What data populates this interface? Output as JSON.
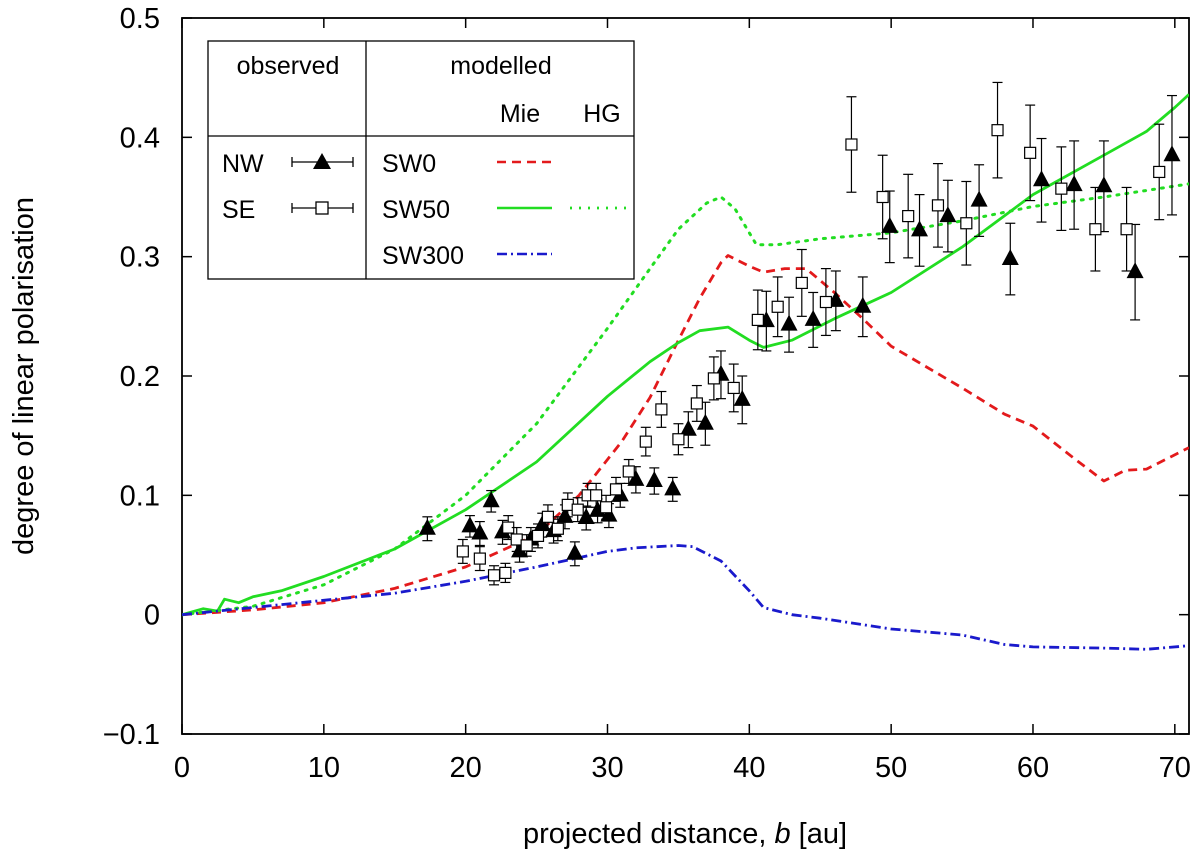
{
  "chart_data": {
    "type": "scatter",
    "title": "",
    "xlabel_pre": "projected distance, ",
    "xlabel_var": "b",
    "xlabel_post": " [au]",
    "ylabel": "degree of linear polarisation",
    "xlim": [
      0,
      71
    ],
    "ylim": [
      -0.1,
      0.5
    ],
    "x_ticks": [
      0,
      10,
      20,
      30,
      40,
      50,
      60,
      70
    ],
    "x_tick_labels": [
      "0",
      "10",
      "20",
      "30",
      "40",
      "50",
      "60",
      "70"
    ],
    "y_ticks": [
      -0.1,
      0,
      0.1,
      0.2,
      0.3,
      0.4,
      0.5
    ],
    "y_tick_labels": [
      "−0.1",
      "0",
      "0.1",
      "0.2",
      "0.3",
      "0.4",
      "0.5"
    ],
    "legend": {
      "placement": "top-left",
      "observed_header": "observed",
      "modelled_header": "modelled",
      "mie_header": "Mie",
      "hg_header": "HG",
      "observed_entries": [
        {
          "label": "NW",
          "marker": "filled-triangle"
        },
        {
          "label": "SE",
          "marker": "open-square"
        }
      ],
      "modelled_entries": [
        {
          "label": "SW0",
          "mie": "red dashed",
          "hg": ""
        },
        {
          "label": "SW50",
          "mie": "green solid",
          "hg": "green dotted"
        },
        {
          "label": "SW300",
          "mie": "blue dash-dot",
          "hg": ""
        }
      ]
    },
    "series": [
      {
        "name": "NW",
        "kind": "points",
        "marker": "triangle",
        "color": "#000000",
        "points": [
          [
            17.3,
            0.072,
            0.01
          ],
          [
            20.3,
            0.074,
            0.009
          ],
          [
            21.0,
            0.068,
            0.01
          ],
          [
            21.8,
            0.095,
            0.009
          ],
          [
            22.6,
            0.069,
            0.01
          ],
          [
            23.8,
            0.053,
            0.009
          ],
          [
            24.6,
            0.063,
            0.01
          ],
          [
            25.4,
            0.075,
            0.01
          ],
          [
            26.2,
            0.07,
            0.01
          ],
          [
            27.0,
            0.082,
            0.01
          ],
          [
            27.7,
            0.051,
            0.01
          ],
          [
            28.5,
            0.081,
            0.01
          ],
          [
            29.3,
            0.087,
            0.01
          ],
          [
            30.1,
            0.083,
            0.01
          ],
          [
            30.9,
            0.1,
            0.01
          ],
          [
            32.0,
            0.113,
            0.011
          ],
          [
            33.3,
            0.112,
            0.011
          ],
          [
            34.6,
            0.105,
            0.01
          ],
          [
            35.7,
            0.155,
            0.015
          ],
          [
            36.9,
            0.16,
            0.018
          ],
          [
            38.0,
            0.201,
            0.02
          ],
          [
            39.5,
            0.18,
            0.02
          ],
          [
            41.2,
            0.246,
            0.025
          ],
          [
            42.8,
            0.243,
            0.023
          ],
          [
            44.5,
            0.247,
            0.023
          ],
          [
            46.1,
            0.263,
            0.025
          ],
          [
            48.0,
            0.258,
            0.025
          ],
          [
            49.9,
            0.325,
            0.03
          ],
          [
            52.0,
            0.322,
            0.03
          ],
          [
            54.0,
            0.334,
            0.03
          ],
          [
            56.2,
            0.347,
            0.03
          ],
          [
            58.4,
            0.298,
            0.03
          ],
          [
            60.6,
            0.364,
            0.035
          ],
          [
            62.9,
            0.36,
            0.037
          ],
          [
            65.0,
            0.359,
            0.038
          ],
          [
            67.2,
            0.287,
            0.04
          ],
          [
            69.8,
            0.385,
            0.05
          ]
        ]
      },
      {
        "name": "SE",
        "kind": "points",
        "marker": "square",
        "color": "#000000",
        "points": [
          [
            19.8,
            0.053,
            0.01
          ],
          [
            21.0,
            0.047,
            0.01
          ],
          [
            22.0,
            0.033,
            0.008
          ],
          [
            22.8,
            0.035,
            0.008
          ],
          [
            23.0,
            0.073,
            0.01
          ],
          [
            23.6,
            0.063,
            0.01
          ],
          [
            24.3,
            0.058,
            0.009
          ],
          [
            25.1,
            0.066,
            0.01
          ],
          [
            25.8,
            0.082,
            0.01
          ],
          [
            26.5,
            0.072,
            0.01
          ],
          [
            27.2,
            0.092,
            0.01
          ],
          [
            27.9,
            0.088,
            0.01
          ],
          [
            28.6,
            0.1,
            0.01
          ],
          [
            29.2,
            0.1,
            0.01
          ],
          [
            29.9,
            0.09,
            0.01
          ],
          [
            30.6,
            0.105,
            0.01
          ],
          [
            31.5,
            0.12,
            0.01
          ],
          [
            32.7,
            0.145,
            0.012
          ],
          [
            33.8,
            0.172,
            0.015
          ],
          [
            35.0,
            0.147,
            0.013
          ],
          [
            36.3,
            0.177,
            0.015
          ],
          [
            37.5,
            0.198,
            0.018
          ],
          [
            38.9,
            0.19,
            0.02
          ],
          [
            40.6,
            0.247,
            0.025
          ],
          [
            42.0,
            0.258,
            0.025
          ],
          [
            43.7,
            0.278,
            0.028
          ],
          [
            45.4,
            0.262,
            0.028
          ],
          [
            47.2,
            0.394,
            0.04
          ],
          [
            49.4,
            0.35,
            0.035
          ],
          [
            51.2,
            0.334,
            0.035
          ],
          [
            53.3,
            0.343,
            0.035
          ],
          [
            55.3,
            0.328,
            0.035
          ],
          [
            57.5,
            0.406,
            0.04
          ],
          [
            59.8,
            0.387,
            0.04
          ],
          [
            62.0,
            0.357,
            0.035
          ],
          [
            64.4,
            0.323,
            0.035
          ],
          [
            66.6,
            0.323,
            0.035
          ],
          [
            68.9,
            0.371,
            0.04
          ]
        ]
      },
      {
        "name": "SW0 Mie",
        "kind": "line",
        "color": "#e31a1c",
        "dash": "9,6",
        "points": [
          [
            0,
            0.0
          ],
          [
            5,
            0.004
          ],
          [
            10,
            0.01
          ],
          [
            15,
            0.022
          ],
          [
            20,
            0.04
          ],
          [
            25,
            0.067
          ],
          [
            28,
            0.1
          ],
          [
            31,
            0.145
          ],
          [
            33,
            0.182
          ],
          [
            35,
            0.23
          ],
          [
            36.5,
            0.265
          ],
          [
            38,
            0.295
          ],
          [
            38.5,
            0.301
          ],
          [
            40,
            0.292
          ],
          [
            41,
            0.287
          ],
          [
            42.5,
            0.29
          ],
          [
            44,
            0.29
          ],
          [
            46,
            0.27
          ],
          [
            48,
            0.248
          ],
          [
            50,
            0.225
          ],
          [
            55,
            0.19
          ],
          [
            58,
            0.168
          ],
          [
            60,
            0.158
          ],
          [
            63,
            0.13
          ],
          [
            65,
            0.112
          ],
          [
            66.5,
            0.121
          ],
          [
            68,
            0.122
          ],
          [
            71,
            0.14
          ]
        ]
      },
      {
        "name": "SW50 Mie",
        "kind": "line",
        "color": "#22dd22",
        "dash": "",
        "points": [
          [
            0,
            0.0
          ],
          [
            1.5,
            0.005
          ],
          [
            2.5,
            0.003
          ],
          [
            3,
            0.013
          ],
          [
            4,
            0.01
          ],
          [
            5,
            0.015
          ],
          [
            7,
            0.02
          ],
          [
            10,
            0.032
          ],
          [
            15,
            0.055
          ],
          [
            20,
            0.088
          ],
          [
            25,
            0.128
          ],
          [
            30,
            0.183
          ],
          [
            33,
            0.212
          ],
          [
            35,
            0.228
          ],
          [
            36.5,
            0.238
          ],
          [
            38.5,
            0.241
          ],
          [
            40,
            0.23
          ],
          [
            41,
            0.224
          ],
          [
            43,
            0.23
          ],
          [
            46,
            0.248
          ],
          [
            50,
            0.27
          ],
          [
            55,
            0.308
          ],
          [
            60,
            0.352
          ],
          [
            65,
            0.385
          ],
          [
            68,
            0.405
          ],
          [
            70,
            0.425
          ],
          [
            71,
            0.436
          ]
        ]
      },
      {
        "name": "SW50 HG",
        "kind": "line",
        "color": "#22dd22",
        "dash": "2,7",
        "points": [
          [
            0,
            0.0
          ],
          [
            5,
            0.007
          ],
          [
            10,
            0.025
          ],
          [
            15,
            0.055
          ],
          [
            20,
            0.1
          ],
          [
            25,
            0.16
          ],
          [
            30,
            0.24
          ],
          [
            33,
            0.29
          ],
          [
            35,
            0.323
          ],
          [
            37,
            0.345
          ],
          [
            38,
            0.35
          ],
          [
            39,
            0.34
          ],
          [
            40,
            0.32
          ],
          [
            40.5,
            0.31
          ],
          [
            42,
            0.31
          ],
          [
            45,
            0.315
          ],
          [
            50,
            0.32
          ],
          [
            55,
            0.33
          ],
          [
            60,
            0.342
          ],
          [
            65,
            0.35
          ],
          [
            71,
            0.361
          ]
        ]
      },
      {
        "name": "SW300 Mie",
        "kind": "line",
        "color": "#1a1acc",
        "dash": "10,4,2,4",
        "points": [
          [
            0,
            0.0
          ],
          [
            5,
            0.006
          ],
          [
            10,
            0.012
          ],
          [
            15,
            0.018
          ],
          [
            20,
            0.028
          ],
          [
            25,
            0.04
          ],
          [
            30,
            0.053
          ],
          [
            32,
            0.056
          ],
          [
            35,
            0.058
          ],
          [
            36,
            0.057
          ],
          [
            38,
            0.045
          ],
          [
            40,
            0.02
          ],
          [
            41,
            0.006
          ],
          [
            43,
            0.0
          ],
          [
            45,
            -0.003
          ],
          [
            50,
            -0.012
          ],
          [
            55,
            -0.017
          ],
          [
            58,
            -0.025
          ],
          [
            60,
            -0.027
          ],
          [
            65,
            -0.028
          ],
          [
            68,
            -0.029
          ],
          [
            71,
            -0.026
          ]
        ]
      }
    ]
  }
}
